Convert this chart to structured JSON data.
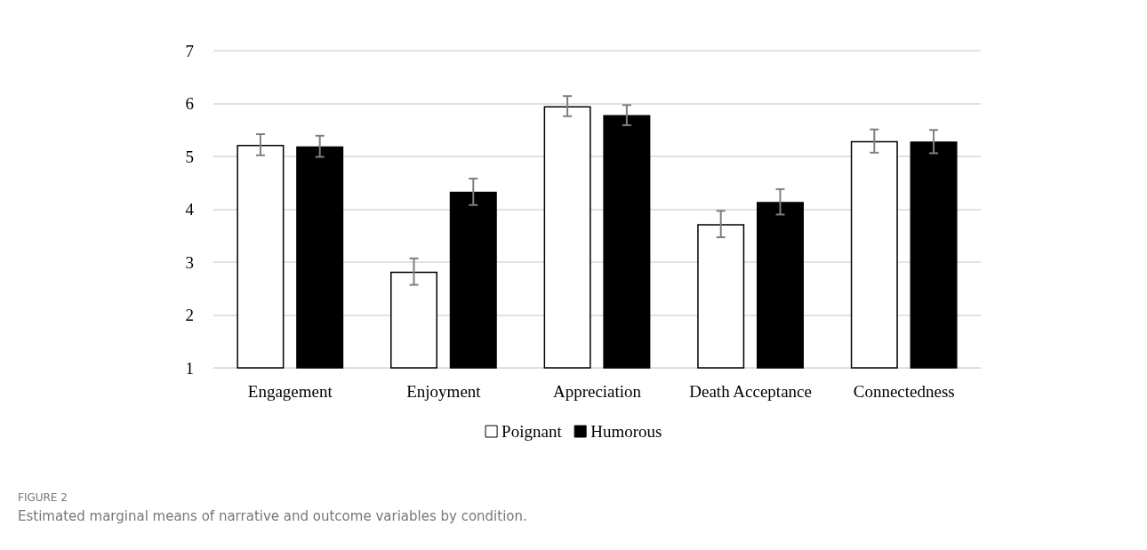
{
  "chart_data": {
    "type": "bar",
    "categories": [
      "Engagement",
      "Enjoyment",
      "Appreciation",
      "Death Acceptance",
      "Connectedness"
    ],
    "series": [
      {
        "name": "Poignant",
        "color": "#ffffff",
        "values": [
          5.22,
          2.82,
          5.95,
          3.72,
          5.29
        ],
        "errors": [
          0.2,
          0.25,
          0.19,
          0.25,
          0.22
        ]
      },
      {
        "name": "Humorous",
        "color": "#000000",
        "values": [
          5.19,
          4.33,
          5.78,
          4.14,
          5.28
        ],
        "errors": [
          0.2,
          0.25,
          0.19,
          0.24,
          0.22
        ]
      }
    ],
    "ylim": [
      1,
      7
    ],
    "yticks": [
      1,
      2,
      3,
      4,
      5,
      6,
      7
    ],
    "grid": "y",
    "legend": "bottom",
    "annotations": [
      "FIGURE 2",
      "Estimated marginal means of narrative and outcome variables by condition."
    ]
  }
}
